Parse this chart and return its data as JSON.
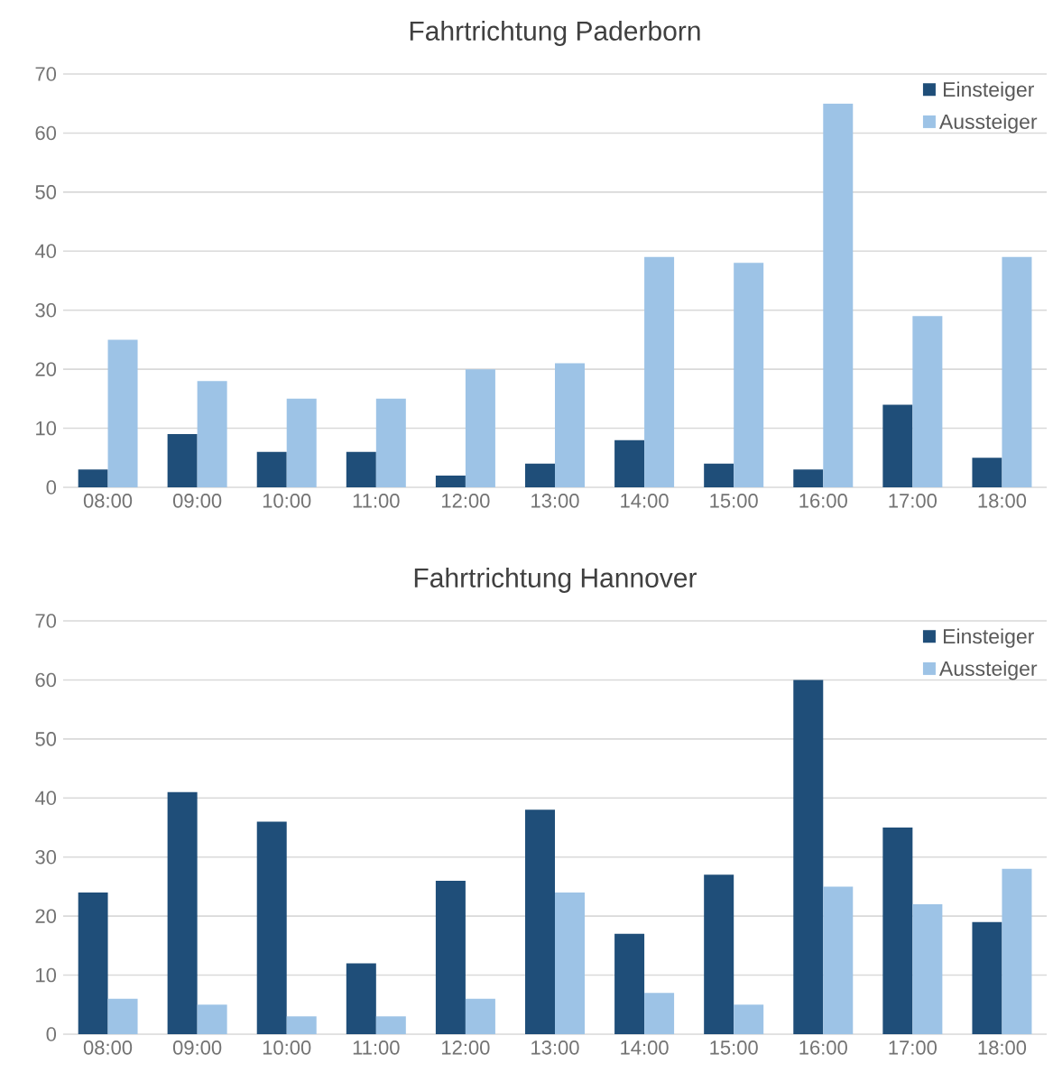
{
  "chart_data": [
    {
      "type": "bar",
      "title": "Fahrtrichtung Paderborn",
      "categories": [
        "08:00",
        "09:00",
        "10:00",
        "11:00",
        "12:00",
        "13:00",
        "14:00",
        "15:00",
        "16:00",
        "17:00",
        "18:00"
      ],
      "series": [
        {
          "name": "Einsteiger",
          "color": "#1f4e79",
          "values": [
            3,
            9,
            6,
            6,
            2,
            4,
            8,
            4,
            3,
            14,
            5
          ]
        },
        {
          "name": "Aussteiger",
          "color": "#9dc3e6",
          "values": [
            25,
            18,
            15,
            15,
            20,
            21,
            39,
            38,
            65,
            29,
            39
          ]
        }
      ],
      "ylim": [
        0,
        70
      ],
      "yticks": [
        0,
        10,
        20,
        30,
        40,
        50,
        60,
        70
      ],
      "grid": "y",
      "legend": "top right"
    },
    {
      "type": "bar",
      "title": "Fahrtrichtung Hannover",
      "categories": [
        "08:00",
        "09:00",
        "10:00",
        "11:00",
        "12:00",
        "13:00",
        "14:00",
        "15:00",
        "16:00",
        "17:00",
        "18:00"
      ],
      "series": [
        {
          "name": "Einsteiger",
          "color": "#1f4e79",
          "values": [
            24,
            41,
            36,
            12,
            26,
            38,
            17,
            27,
            60,
            35,
            19
          ]
        },
        {
          "name": "Aussteiger",
          "color": "#9dc3e6",
          "values": [
            6,
            5,
            3,
            3,
            6,
            24,
            7,
            5,
            25,
            22,
            28
          ]
        }
      ],
      "ylim": [
        0,
        70
      ],
      "yticks": [
        0,
        10,
        20,
        30,
        40,
        50,
        60,
        70
      ],
      "grid": "y",
      "legend": "top right"
    }
  ]
}
